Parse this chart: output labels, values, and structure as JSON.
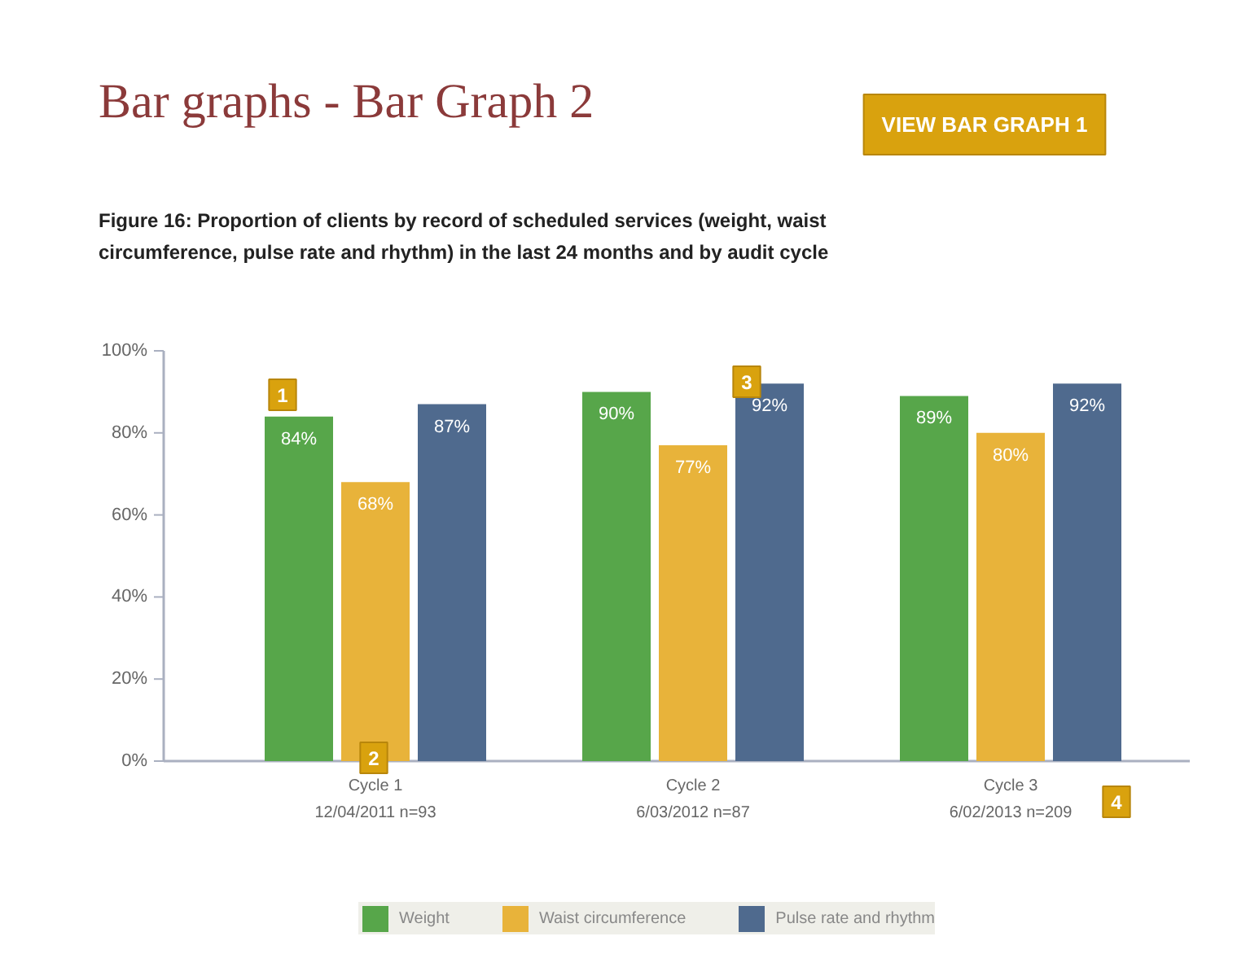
{
  "chart_data": {
    "type": "bar",
    "title": "Bar graphs - Bar Graph 2",
    "subtitle": "Figure 16: Proportion of clients by record of scheduled services (weight, waist\ncircumference, pulse rate and rhythm) in the last 24 months and by audit cycle",
    "categories": [
      "Cycle 1\n12/04/2011 n=93",
      "Cycle 2\n6/03/2012 n=87",
      "Cycle 3\n6/02/2013 n=209"
    ],
    "series": [
      {
        "name": "Weight",
        "color": "#57a64a",
        "values": [
          84,
          90,
          89
        ],
        "value_labels": [
          "84%",
          "90%",
          "89%"
        ]
      },
      {
        "name": "Waist circumference",
        "color": "#e8b33a",
        "values": [
          68,
          77,
          80
        ],
        "value_labels": [
          "68%",
          "77%",
          "80%"
        ]
      },
      {
        "name": "Pulse rate and rhythm",
        "color": "#4f6a8e",
        "values": [
          87,
          92,
          92
        ],
        "value_labels": [
          "87%",
          "92%",
          "92%"
        ]
      }
    ],
    "ylim": [
      0,
      100
    ],
    "yticks": [
      {
        "value": 0,
        "label": "0%"
      },
      {
        "value": 20,
        "label": "20%"
      },
      {
        "value": 40,
        "label": "40%"
      },
      {
        "value": 60,
        "label": "60%"
      },
      {
        "value": 80,
        "label": "80%"
      },
      {
        "value": 100,
        "label": "100%"
      }
    ],
    "grid": false,
    "legend": "bottom",
    "annotations": [
      "VIEW BAR GRAPH 1",
      "1",
      "2",
      "3",
      "4"
    ]
  }
}
